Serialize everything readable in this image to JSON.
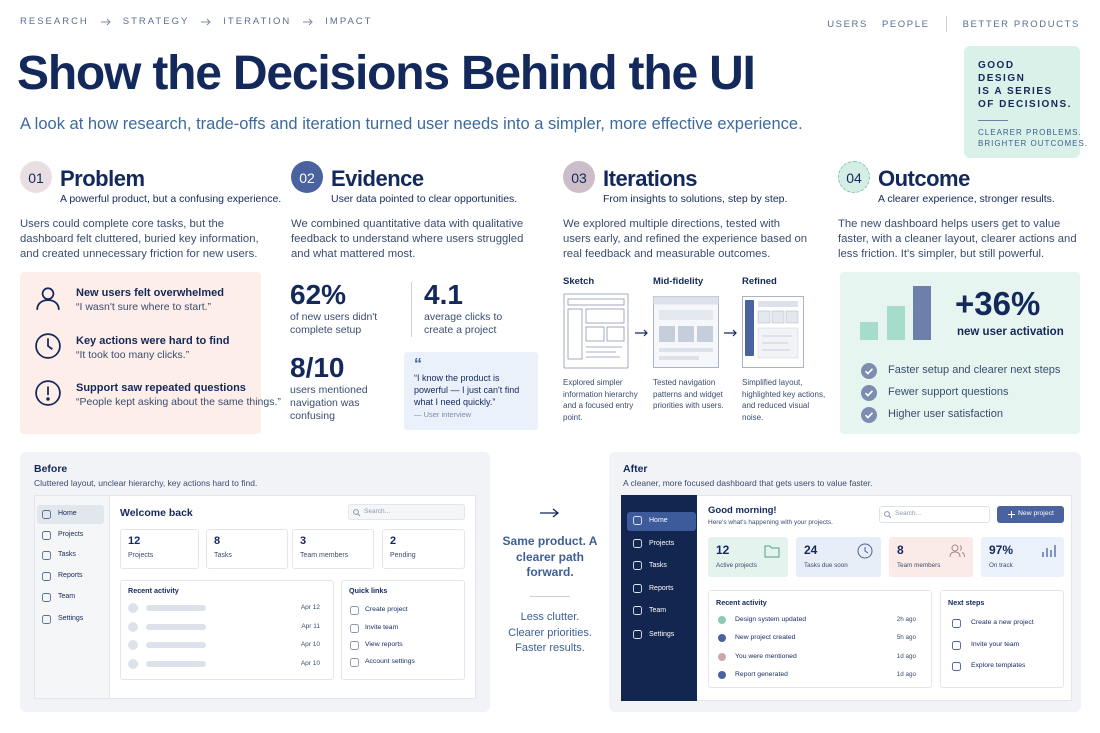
{
  "nav": {
    "steps": [
      "RESEARCH",
      "STRATEGY",
      "ITERATION",
      "IMPACT"
    ],
    "links": [
      "USERS",
      "PEOPLE"
    ],
    "tagline": "BETTER PRODUCTS"
  },
  "header": {
    "title": "Show the Decisions Behind the UI",
    "subtitle": "A look at how research, trade-offs and iteration turned user needs into a simpler, more effective experience."
  },
  "badge": {
    "lines": [
      "GOOD",
      "DESIGN",
      "IS A SERIES",
      "OF DECISIONS."
    ],
    "footer": [
      "CLEARER PROBLEMS.",
      "BRIGHTER OUTCOMES."
    ]
  },
  "problem": {
    "number": "01",
    "title": "Problem",
    "tagline": "A powerful product, but a confusing experience.",
    "body": "Users could complete core tasks, but the dashboard felt cluttered, buried key information, and created unnecessary friction for new users.",
    "findings": [
      {
        "title": "New users felt overwhelmed",
        "quote": "“I wasn't sure where to start.”"
      },
      {
        "title": "Key actions were hard to find",
        "quote": "“It took too many clicks.”"
      },
      {
        "title": "Support saw repeated questions",
        "quote": "“People kept asking about the same things.”"
      }
    ]
  },
  "evidence": {
    "number": "02",
    "title": "Evidence",
    "tagline": "User data pointed to clear opportunities.",
    "body": "We combined quantitative data with qualitative feedback to understand where users struggled and what mattered most.",
    "stats": [
      {
        "value": "62%",
        "label": "of new users didn't complete setup"
      },
      {
        "value": "4.1",
        "label": "average clicks to create a project"
      },
      {
        "value": "8/10",
        "label": "users mentioned navigation was confusing"
      }
    ],
    "quote": {
      "mark": "“",
      "text": "“I know the product is powerful — I just can't find what I need quickly.”",
      "source": "— User interview"
    }
  },
  "iterations": {
    "number": "03",
    "title": "Iterations",
    "tagline": "From insights to solutions, step by step.",
    "body": "We explored multiple directions, tested with users early, and refined the experience based on real feedback and measurable outcomes.",
    "stages": [
      {
        "label": "Sketch",
        "caption": "Explored simpler information hierarchy and a focused entry point."
      },
      {
        "label": "Mid-fidelity",
        "caption": "Tested navigation patterns and widget priorities with users."
      },
      {
        "label": "Refined",
        "caption": "Simplified layout, highlighted key actions, and reduced visual noise."
      }
    ]
  },
  "outcome": {
    "number": "04",
    "title": "Outcome",
    "tagline": "A clearer experience, stronger results.",
    "body": "The new dashboard helps users get to value faster, with a cleaner layout, clearer actions and less friction. It's simpler, but still powerful.",
    "metric": "+36%",
    "metric_label": "new user activation",
    "results": [
      "Faster setup and clearer next steps",
      "Fewer support questions",
      "Higher user satisfaction"
    ]
  },
  "before": {
    "title": "Before",
    "subtitle": "Cluttered layout, unclear hierarchy, key actions hard to find.",
    "nav": [
      "Home",
      "Projects",
      "Tasks",
      "Reports",
      "Team",
      "Settings"
    ],
    "heading": "Welcome back",
    "search": "Search...",
    "stats": [
      {
        "value": "12",
        "label": "Projects"
      },
      {
        "value": "8",
        "label": "Tasks"
      },
      {
        "value": "3",
        "label": "Team members"
      },
      {
        "value": "2",
        "label": "Pending"
      }
    ],
    "activity": {
      "title": "Recent activity",
      "dates": [
        "Apr 12",
        "Apr 11",
        "Apr 10",
        "Apr 10"
      ]
    },
    "quick_links": {
      "title": "Quick links",
      "items": [
        "Create project",
        "Invite team",
        "View reports",
        "Account settings"
      ]
    }
  },
  "transition": {
    "headline": "Same product. A clearer path forward.",
    "summary": [
      "Less clutter.",
      "Clearer priorities.",
      "Faster results."
    ]
  },
  "after": {
    "title": "After",
    "subtitle": "A cleaner, more focused dashboard that gets users to value faster.",
    "nav": [
      "Home",
      "Projects",
      "Tasks",
      "Reports",
      "Team",
      "Settings"
    ],
    "greeting": "Good morning!",
    "greeting_sub": "Here's what's happening with your projects.",
    "search": "Search...",
    "action": "New project",
    "stats": [
      {
        "value": "12",
        "label": "Active projects"
      },
      {
        "value": "24",
        "label": "Tasks due soon"
      },
      {
        "value": "8",
        "label": "Team members"
      },
      {
        "value": "97%",
        "label": "On track"
      }
    ],
    "activity": {
      "title": "Recent activity",
      "items": [
        {
          "text": "Design system updated",
          "time": "2h ago"
        },
        {
          "text": "New project created",
          "time": "5h ago"
        },
        {
          "text": "You were mentioned",
          "time": "1d ago"
        },
        {
          "text": "Report generated",
          "time": "1d ago"
        }
      ]
    },
    "next_steps": {
      "title": "Next steps",
      "items": [
        "Create a new project",
        "Invite your team",
        "Explore templates"
      ]
    }
  }
}
